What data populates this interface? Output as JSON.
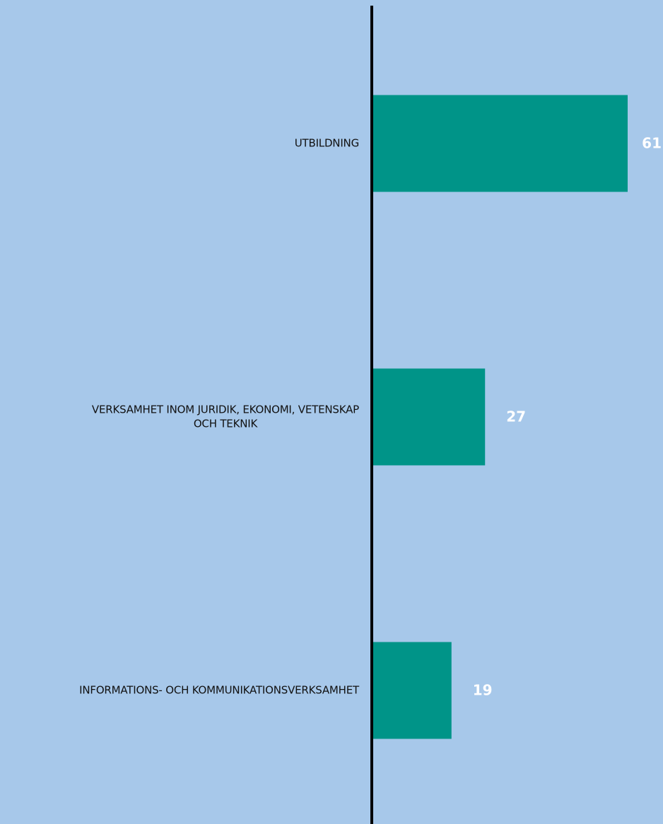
{
  "colors": {
    "background": "#a7c8ea",
    "bar": "#009488",
    "axis": "#000000",
    "category_text": "#111111",
    "value_text": "#ffffff"
  },
  "chart_data": {
    "type": "bar",
    "orientation": "horizontal",
    "title": "",
    "xlabel": "",
    "ylabel": "",
    "grid": false,
    "legend": "none",
    "xlim": [
      0,
      61
    ],
    "categories": [
      [
        "UTBILDNING"
      ],
      [
        "VERKSAMHET INOM JURIDIK, EKONOMI, VETENSKAP",
        "OCH TEKNIK"
      ],
      [
        "INFORMATIONS- OCH KOMMUNIKATIONSVERKSAMHET"
      ]
    ],
    "values": [
      61,
      27,
      19
    ],
    "value_labels": [
      "61",
      "27",
      "19"
    ]
  }
}
